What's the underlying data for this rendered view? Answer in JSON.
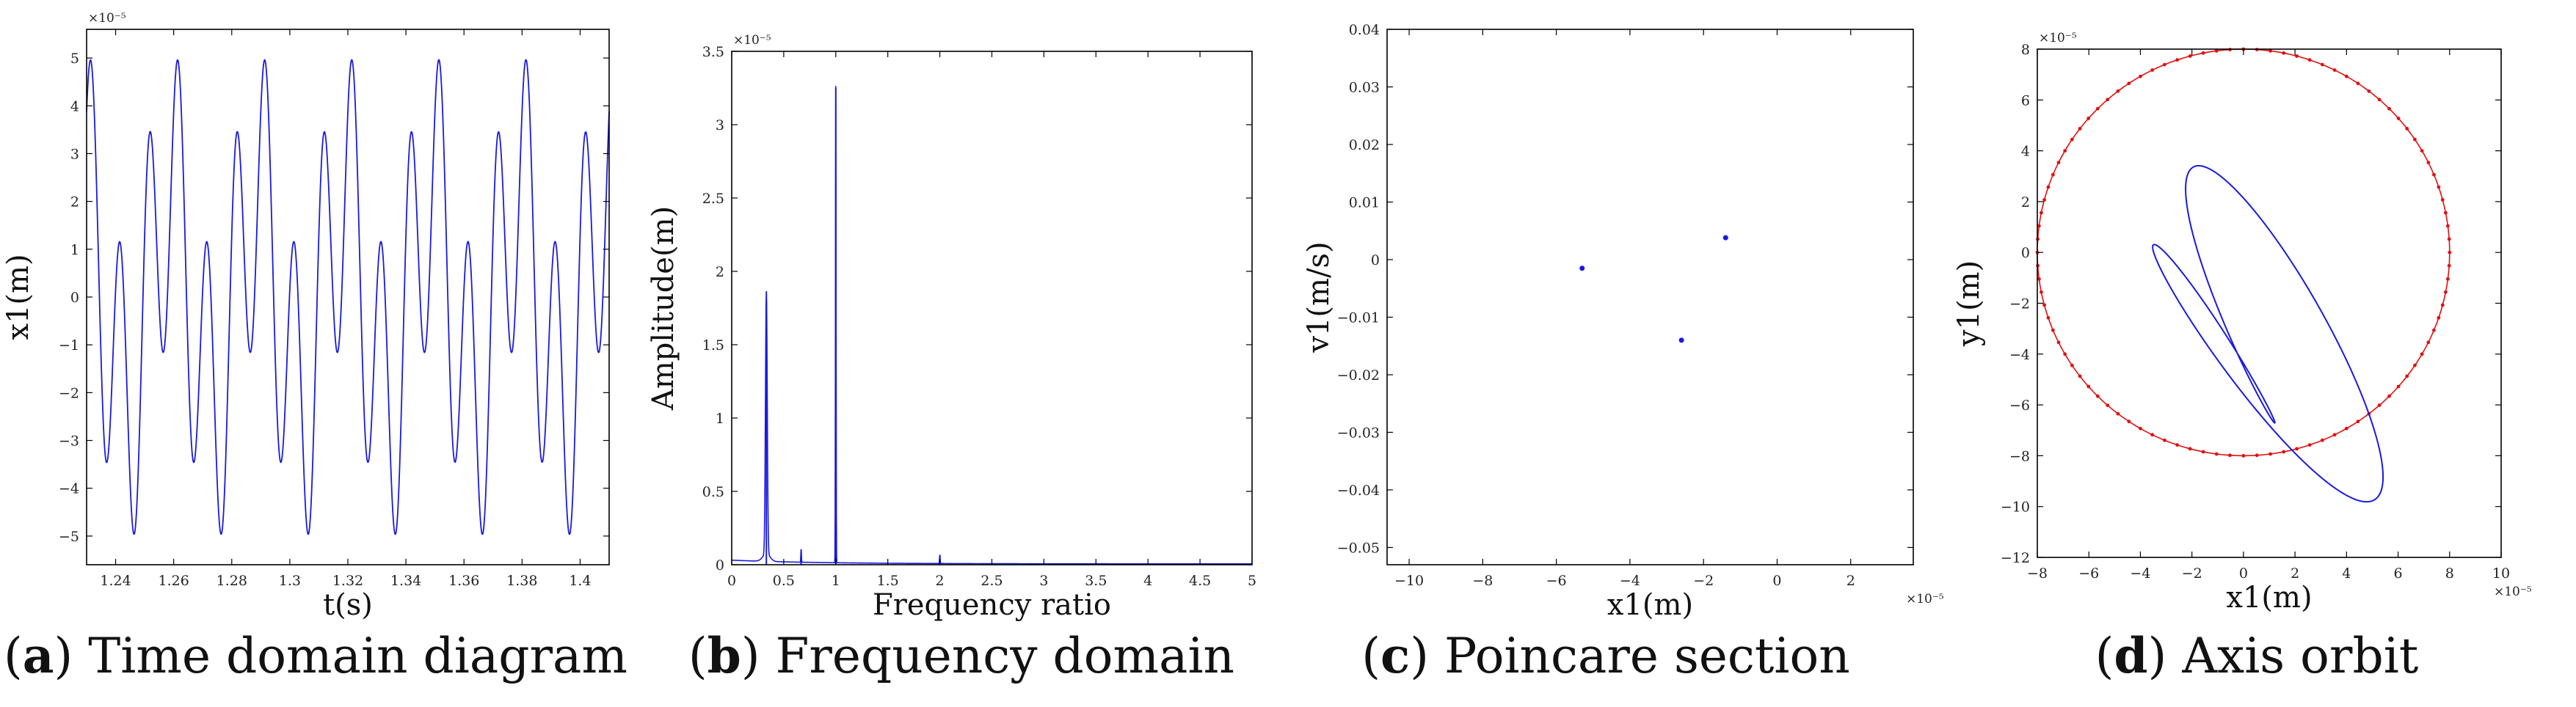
{
  "captions": [
    {
      "letter": "a",
      "text": "Time domain diagram"
    },
    {
      "letter": "b",
      "text": "Frequency domain"
    },
    {
      "letter": "c",
      "text": "Poincare section"
    },
    {
      "letter": "d",
      "text": "Axis orbit"
    }
  ],
  "chart_data": [
    {
      "type": "line",
      "xlabel": "t(s)",
      "ylabel": "x1(m)",
      "xlim": [
        1.23,
        1.41
      ],
      "ylim": [
        -5.6,
        5.6
      ],
      "y_scale_label": "×10⁻⁵",
      "xticks": [
        1.24,
        1.26,
        1.28,
        1.3,
        1.32,
        1.34,
        1.36,
        1.38,
        1.4
      ],
      "xtick_labels": [
        "1.24",
        "1.26",
        "1.28",
        "1.3",
        "1.32",
        "1.34",
        "1.36",
        "1.38",
        "1.4"
      ],
      "yticks": [
        -5,
        -4,
        -3,
        -2,
        -1,
        0,
        1,
        2,
        3,
        4,
        5
      ],
      "ytick_labels": [
        "−5",
        "−4",
        "−3",
        "−2",
        "−1",
        "0",
        "1",
        "2",
        "3",
        "4",
        "5"
      ],
      "series": [
        {
          "color": "#1a1adf",
          "components": [
            {
              "amplitude": 3.15,
              "frequency_hz": 100,
              "phase": 0.6
            },
            {
              "amplitude": 2.2,
              "frequency_hz": 33.33,
              "phase": 1.9
            }
          ]
        }
      ]
    },
    {
      "type": "line",
      "xlabel": "Frequency ratio",
      "ylabel": "Amplitude(m)",
      "xlim": [
        0,
        5
      ],
      "ylim": [
        0,
        3.5
      ],
      "y_scale_label": "×10⁻⁵",
      "xticks": [
        0,
        0.5,
        1,
        1.5,
        2,
        2.5,
        3,
        3.5,
        4,
        4.5,
        5
      ],
      "xtick_labels": [
        "0",
        "0.5",
        "1",
        "1.5",
        "2",
        "2.5",
        "3",
        "3.5",
        "4",
        "4.5",
        "5"
      ],
      "yticks": [
        0,
        0.5,
        1,
        1.5,
        2,
        2.5,
        3,
        3.5
      ],
      "ytick_labels": [
        "0",
        "0.5",
        "1",
        "1.5",
        "2",
        "2.5",
        "3",
        "3.5"
      ],
      "series": [
        {
          "color": "#1a1adf",
          "peaks": [
            {
              "x": 0.333,
              "y": 1.8
            },
            {
              "x": 0.667,
              "y": 0.09
            },
            {
              "x": 1.0,
              "y": 3.25
            },
            {
              "x": 2.0,
              "y": 0.06
            }
          ]
        }
      ]
    },
    {
      "type": "scatter",
      "xlabel": "x1(m)",
      "ylabel": "v1(m/s)",
      "xlim": [
        -10.6,
        3.7
      ],
      "ylim": [
        -0.053,
        0.04
      ],
      "x_scale_label": "×10⁻⁵",
      "xticks": [
        -10,
        -8,
        -6,
        -4,
        -2,
        0,
        2
      ],
      "xtick_labels": [
        "−10",
        "−8",
        "−6",
        "−4",
        "−2",
        "0",
        "2"
      ],
      "yticks": [
        -0.05,
        -0.04,
        -0.03,
        -0.02,
        -0.01,
        0,
        0.01,
        0.02,
        0.03,
        0.04
      ],
      "ytick_labels": [
        "−0.05",
        "−0.04",
        "−0.03",
        "−0.02",
        "−0.01",
        "0",
        "0.01",
        "0.02",
        "0.03",
        "0.04"
      ],
      "series": [
        {
          "color": "#1a1adf",
          "points": [
            {
              "x": -5.3,
              "y": -0.0015
            },
            {
              "x": -2.6,
              "y": -0.014
            },
            {
              "x": -1.4,
              "y": 0.0038
            }
          ]
        }
      ]
    },
    {
      "type": "line",
      "xlabel": "x1(m)",
      "ylabel": "y1(m)",
      "xlim": [
        -8,
        10
      ],
      "ylim": [
        -12,
        8
      ],
      "x_scale_label": "×10⁻⁵",
      "y_scale_label": "×10⁻⁵",
      "xticks": [
        -8,
        -6,
        -4,
        -2,
        0,
        2,
        4,
        6,
        8,
        10
      ],
      "xtick_labels": [
        "−8",
        "−6",
        "−4",
        "−2",
        "0",
        "2",
        "4",
        "6",
        "8",
        "10"
      ],
      "yticks": [
        -12,
        -10,
        -8,
        -6,
        -4,
        -2,
        0,
        2,
        4,
        6,
        8
      ],
      "ytick_labels": [
        "−12",
        "−10",
        "−8",
        "−6",
        "−4",
        "−2",
        "0",
        "2",
        "4",
        "6",
        "8"
      ],
      "series": [
        {
          "kind": "circle",
          "color": "#e01010",
          "radius": 8,
          "center": [
            0,
            0
          ]
        },
        {
          "kind": "orbit",
          "color": "#1a1adf",
          "components": [
            {
              "ax": 2.2,
              "ay": 2.2,
              "harmonic": 1,
              "phase": 0.3
            },
            {
              "ax": 3.0,
              "ay": 5.0,
              "harmonic": 2,
              "phase": 1.2
            }
          ],
          "offset": [
            0.3,
            -3.2
          ]
        }
      ]
    }
  ]
}
